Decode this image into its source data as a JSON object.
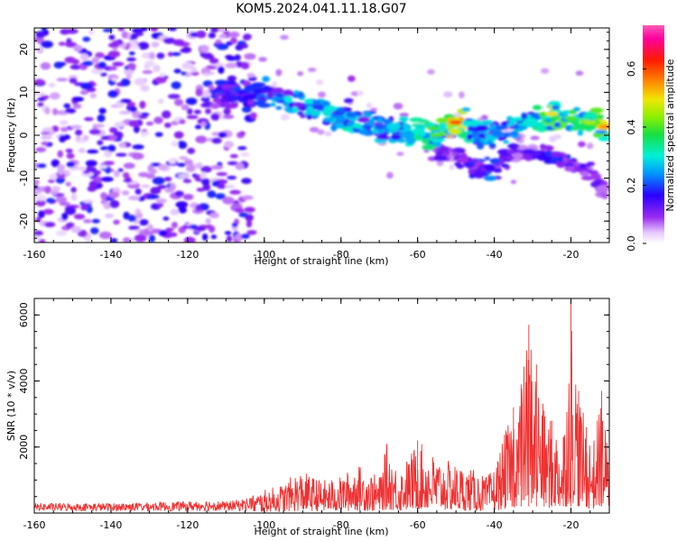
{
  "figure": {
    "title": "KOM5.2024.041.11.18.G07"
  },
  "chart_data": [
    {
      "type": "heatmap",
      "xlabel": "Height of straight line (km)",
      "ylabel": "Frequency (Hz)",
      "xlim": [
        -160,
        -10
      ],
      "ylim": [
        -25,
        25
      ],
      "x_ticks": [
        -160,
        -140,
        -120,
        -100,
        -80,
        -60,
        -40,
        -20
      ],
      "y_ticks": [
        -20,
        -10,
        0,
        10,
        20
      ],
      "colorbar": {
        "label": "Normalized spectral amplitude",
        "range": [
          0.0,
          0.75
        ],
        "ticks": [
          0.0,
          0.2,
          0.4,
          0.6
        ],
        "colormap": "gist_ncar-like (white, violet, blue, cyan, green, yellow, orange, red, magenta)"
      },
      "ridge": {
        "description": "main high-amplitude band",
        "x": [
          -113,
          -105,
          -100,
          -95,
          -90,
          -85,
          -80,
          -75,
          -70,
          -65,
          -60,
          -55,
          -50,
          -45,
          -40,
          -35,
          -30,
          -25,
          -20,
          -15,
          -11
        ],
        "y": [
          10,
          9,
          10,
          8,
          7,
          6,
          4,
          3,
          1,
          1,
          0,
          0,
          3,
          1,
          0,
          2,
          4,
          5,
          4,
          3,
          2
        ],
        "peak_amplitude": [
          0.2,
          0.2,
          0.25,
          0.3,
          0.3,
          0.3,
          0.35,
          0.3,
          0.3,
          0.3,
          0.35,
          0.4,
          0.6,
          0.3,
          0.3,
          0.3,
          0.35,
          0.5,
          0.4,
          0.45,
          0.55
        ]
      },
      "secondary_branch": {
        "description": "lower branch",
        "x": [
          -55,
          -50,
          -45,
          -42,
          -35,
          -30,
          -25,
          -20,
          -15,
          -11
        ],
        "y": [
          -3,
          -5,
          -7,
          -8,
          -4,
          -4,
          -5,
          -7,
          -8,
          -14
        ],
        "peak_amplitude": [
          0.15,
          0.15,
          0.2,
          0.25,
          0.15,
          0.15,
          0.2,
          0.2,
          0.15,
          0.1
        ]
      },
      "noise_region": {
        "x_range": [
          -160,
          -103
        ],
        "y_range": [
          -25,
          25
        ],
        "typical_amplitude": 0.1
      }
    },
    {
      "type": "line",
      "xlabel": "Height of straight line (km)",
      "ylabel": "SNR (10 * v/v)",
      "xlim": [
        -160,
        -10
      ],
      "ylim": [
        0,
        6500
      ],
      "x_ticks": [
        -160,
        -140,
        -120,
        -100,
        -80,
        -60,
        -40,
        -20
      ],
      "y_ticks": [
        2000,
        4000,
        6000
      ],
      "color": "#f03030",
      "envelope": {
        "description": "approximate upper envelope of the noisy SNR trace",
        "x": [
          -160,
          -140,
          -120,
          -115,
          -110,
          -105,
          -100,
          -95,
          -91,
          -85,
          -80,
          -76,
          -70,
          -68,
          -65,
          -62,
          -60,
          -55,
          -50,
          -45,
          -42,
          -40,
          -37,
          -35,
          -33,
          -31,
          -29,
          -27,
          -25,
          -22,
          -20,
          -18,
          -16,
          -14,
          -12,
          -10
        ],
        "y": [
          300,
          300,
          350,
          400,
          350,
          450,
          700,
          900,
          1300,
          1000,
          1100,
          1500,
          1100,
          2100,
          1300,
          1800,
          2200,
          1700,
          1500,
          1300,
          1100,
          1400,
          2500,
          3200,
          3900,
          5700,
          4500,
          3100,
          2800,
          2300,
          6400,
          3700,
          2600,
          2200,
          3700,
          1600
        ]
      }
    }
  ]
}
